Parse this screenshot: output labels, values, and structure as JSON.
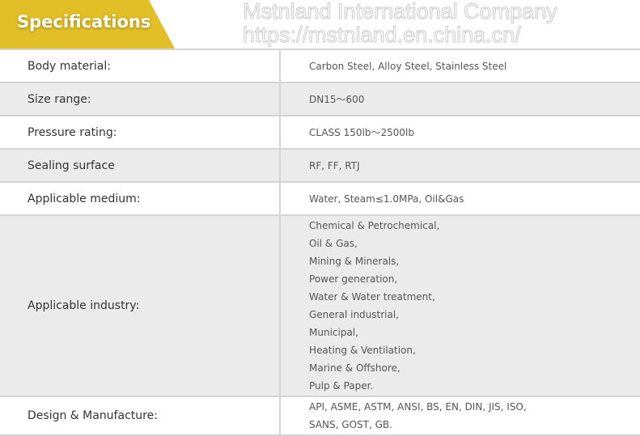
{
  "header": {
    "title": "Specifications",
    "accent": "#e2bf27"
  },
  "rows": [
    {
      "label": "Body material:",
      "value": [
        "Carbon Steel, Alloy Steel, Stainless Steel"
      ]
    },
    {
      "label": "Size range:",
      "value": [
        "DN15～600"
      ]
    },
    {
      "label": "Pressure rating:",
      "value": [
        "CLASS 150lb～2500lb"
      ]
    },
    {
      "label": "Sealing surface",
      "value": [
        "RF, FF, RTJ"
      ]
    },
    {
      "label": "Applicable medium:",
      "value": [
        "Water, Steam≤1.0MPa, Oil&Gas"
      ]
    },
    {
      "label": "Applicable industry:",
      "value": [
        "Chemical & Petrochemical,",
        "Oil & Gas,",
        "Mining & Minerals,",
        "Power generation,",
        "Water & Water treatment,",
        "General industrial,",
        "Municipal,",
        "Heating & Ventilation,",
        "Marine & Offshore,",
        "Pulp & Paper."
      ]
    },
    {
      "label": "Design & Manufacture:",
      "value": [
        "API, ASME, ASTM, ANSI, BS, EN, DIN, JIS, ISO,",
        "SANS, GOST, GB."
      ]
    }
  ],
  "watermark": {
    "line1": "Mstnland International Company",
    "line2": "https://mstnland.en.china.cn/"
  }
}
